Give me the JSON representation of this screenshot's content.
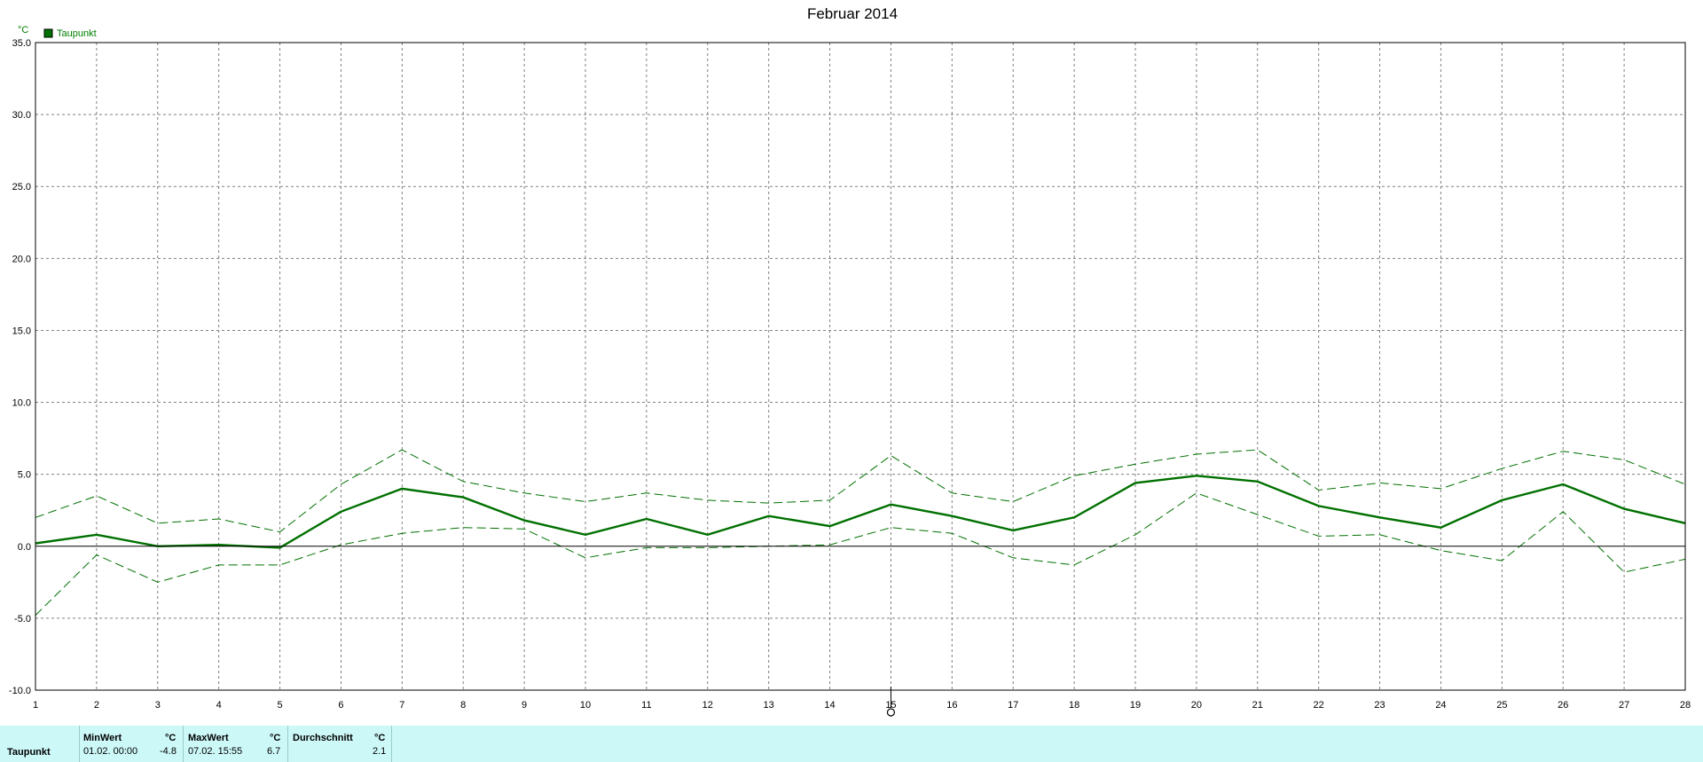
{
  "chart_data": {
    "type": "line",
    "title": "Februar 2014",
    "ylabel": "°C",
    "ylim": [
      -10,
      35
    ],
    "yticks": [
      "35.0",
      "30.0",
      "25.0",
      "20.0",
      "15.0",
      "10.0",
      "5.0",
      "0.0",
      "-5.0",
      "-10.0"
    ],
    "x": [
      1,
      2,
      3,
      4,
      5,
      6,
      7,
      8,
      9,
      10,
      11,
      12,
      13,
      14,
      15,
      16,
      17,
      18,
      19,
      20,
      21,
      22,
      23,
      24,
      25,
      26,
      27,
      28
    ],
    "xlim": [
      1,
      28
    ],
    "grid": true,
    "legend": {
      "position": "top-left",
      "entries": [
        "Taupunkt"
      ]
    },
    "colors": {
      "series": "#007000",
      "axis": "#000000",
      "grid": "#808080",
      "ylabel": "#008000"
    },
    "series": [
      {
        "name": "Taupunkt",
        "style": "solid",
        "values": [
          0.2,
          0.8,
          0.0,
          0.1,
          -0.1,
          2.4,
          4.0,
          3.4,
          1.8,
          0.8,
          1.9,
          0.8,
          2.1,
          1.4,
          2.9,
          2.1,
          1.1,
          2.0,
          4.4,
          4.9,
          4.5,
          2.8,
          2.0,
          1.3,
          3.2,
          4.3,
          2.6,
          1.6
        ]
      },
      {
        "style": "dashed",
        "values": [
          2.0,
          3.5,
          1.6,
          1.9,
          1.0,
          4.3,
          6.7,
          4.5,
          3.7,
          3.1,
          3.7,
          3.2,
          3.0,
          3.2,
          6.3,
          3.7,
          3.1,
          4.9,
          5.7,
          6.4,
          6.7,
          3.9,
          4.4,
          4.0,
          5.4,
          6.6,
          6.0,
          4.3
        ]
      },
      {
        "style": "dashed",
        "values": [
          -4.8,
          -0.6,
          -2.5,
          -1.3,
          -1.3,
          0.1,
          0.9,
          1.3,
          1.2,
          -0.8,
          -0.1,
          -0.1,
          0.0,
          0.1,
          1.3,
          0.9,
          -0.8,
          -1.3,
          0.8,
          3.7,
          2.2,
          0.7,
          0.8,
          -0.3,
          -1.0,
          2.4,
          -1.8,
          -0.9
        ]
      }
    ]
  },
  "summary": {
    "row_label": "Taupunkt",
    "min": {
      "header": "MinWert",
      "unit": "°C",
      "time": "01.02.  00:00",
      "value": "-4.8"
    },
    "max": {
      "header": "MaxWert",
      "unit": "°C",
      "time": "07.02.  15:55",
      "value": "6.7"
    },
    "avg": {
      "header": "Durchschnitt",
      "unit": "°C",
      "value": "2.1"
    }
  }
}
